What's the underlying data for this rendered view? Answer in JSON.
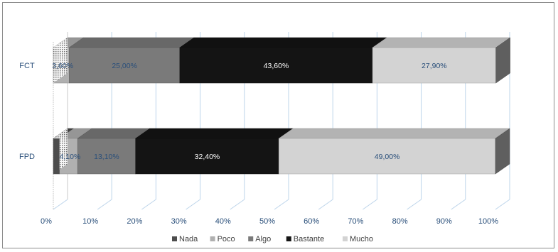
{
  "chart_data": {
    "type": "bar",
    "orientation": "horizontal",
    "stacked": "percent",
    "three_d": true,
    "categories": [
      "FCT",
      "FPD"
    ],
    "series": [
      {
        "name": "Nada",
        "values": [
          0.0,
          1.4
        ],
        "color": "#4d4d4d"
      },
      {
        "name": "Poco",
        "values": [
          3.6,
          4.1
        ],
        "color": "#b0b0b0"
      },
      {
        "name": "Algo",
        "values": [
          25.0,
          13.1
        ],
        "color": "#7a7a7a"
      },
      {
        "name": "Bastante",
        "values": [
          43.6,
          32.4
        ],
        "color": "#141414"
      },
      {
        "name": "Mucho",
        "values": [
          27.9,
          49.0
        ],
        "color": "#d3d3d3"
      }
    ],
    "data_labels": [
      [
        "",
        "3,60%",
        "25,00%",
        "43,60%",
        "27,90%"
      ],
      [
        "",
        "4,10%",
        "13,10%",
        "32,40%",
        "49,00%"
      ]
    ],
    "x_ticks": [
      "0%",
      "10%",
      "20%",
      "30%",
      "40%",
      "50%",
      "60%",
      "70%",
      "80%",
      "90%",
      "100%"
    ],
    "xlim": [
      0,
      100
    ],
    "grid": true,
    "legend_position": "bottom"
  }
}
